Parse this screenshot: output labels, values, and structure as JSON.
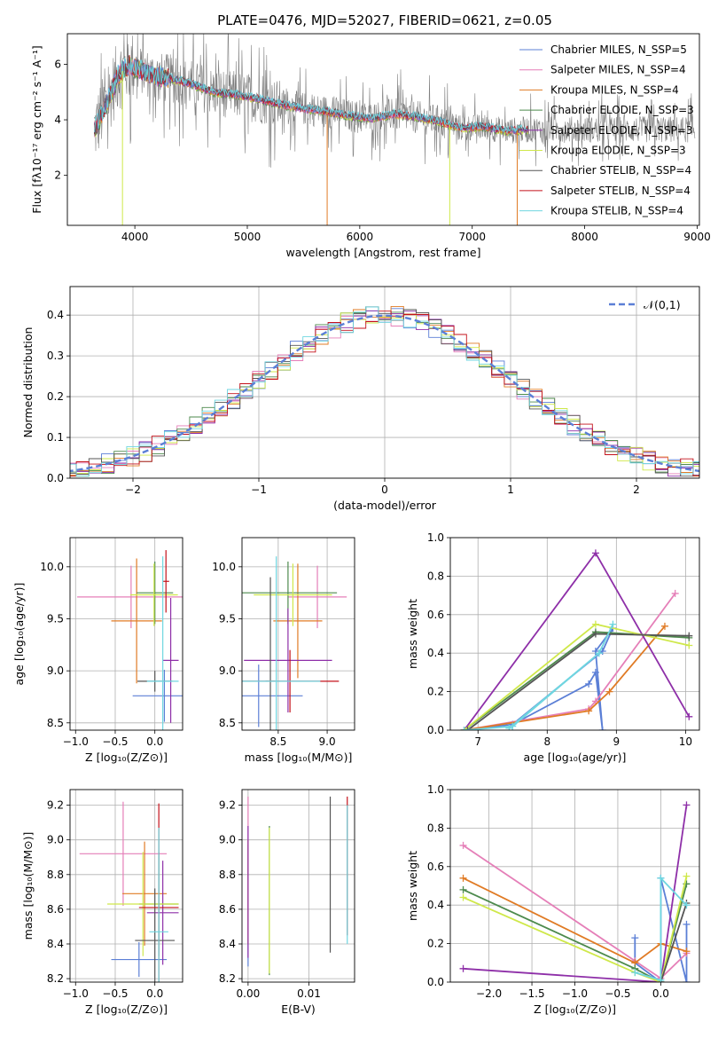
{
  "colors": {
    "Chabrier MILES": "#5b7fd6",
    "Salpeter MILES": "#e57fb8",
    "Kroupa MILES": "#e07b25",
    "Chabrier ELODIE": "#4d8a4d",
    "Salpeter ELODIE": "#8e2fa8",
    "Kroupa ELODIE": "#cfe84a",
    "Chabrier STELIB": "#555555",
    "Salpeter STELIB": "#c4121b",
    "Kroupa STELIB": "#6fd6e0",
    "data": "#808080"
  },
  "chart_data": [
    {
      "type": "line",
      "title": "PLATE=0476, MJD=52027, FIBERID=0621, z=0.05",
      "xlabel": "wavelength [Angstrom, rest frame]",
      "ylabel": "Flux [fλ10⁻¹⁷ erg cm⁻² s⁻¹ A⁻¹]",
      "xlim": [
        3400,
        9020
      ],
      "ylim": [
        0.2,
        7.1
      ],
      "xticks": [
        "4000",
        "5000",
        "6000",
        "7000",
        "8000",
        "9000"
      ],
      "yticks": [
        "2",
        "4",
        "6"
      ],
      "legend": [
        "Chabrier MILES, N_SSP=5",
        "Salpeter MILES, N_SSP=4",
        "Kroupa MILES, N_SSP=4",
        "Chabrier ELODIE, N_SSP=3",
        "Salpeter ELODIE, N_SSP=3",
        "Kroupa ELODIE, N_SSP=3",
        "Chabrier STELIB, N_SSP=4",
        "Salpeter STELIB, N_SSP=4",
        "Kroupa STELIB, N_SSP=4"
      ],
      "legend_placement": "top-right",
      "model_continuum": {
        "x": [
          3650,
          3750,
          3850,
          3950,
          4050,
          4150,
          4300,
          4500,
          4700,
          4900,
          5100,
          5300,
          5500,
          5700,
          5900,
          6100,
          6300,
          6500,
          6700,
          6900,
          7100,
          7300,
          7500
        ],
        "y": [
          3.7,
          4.6,
          5.6,
          6.0,
          5.8,
          5.6,
          5.5,
          5.3,
          5.0,
          4.9,
          4.75,
          4.55,
          4.4,
          4.3,
          4.15,
          4.05,
          4.2,
          4.1,
          3.95,
          3.7,
          3.75,
          3.6,
          3.65
        ]
      }
    },
    {
      "type": "line",
      "xlabel": "(data-model)/error",
      "ylabel": "Normed distribution",
      "xlim": [
        -2.5,
        2.5
      ],
      "ylim": [
        0,
        0.47
      ],
      "xticks": [
        "−2",
        "−1",
        "0",
        "1",
        "2"
      ],
      "yticks": [
        "0.0",
        "0.1",
        "0.2",
        "0.3",
        "0.4"
      ],
      "legend": [
        "𝒩(0,1)"
      ],
      "legend_placement": "top-right",
      "gaussian": {
        "mu": 0,
        "sigma": 1
      }
    },
    {
      "type": "scatter",
      "xlabel": "Z [log₁₀(Z/Z⊙)]",
      "ylabel": "age  [log₁₀(age/yr)]",
      "xlim": [
        -1.07,
        0.35
      ],
      "ylim": [
        8.43,
        10.28
      ],
      "xticks": [
        "−1.0",
        "−0.5",
        "0.0"
      ],
      "yticks": [
        "8.5",
        "9.0",
        "9.5",
        "10.0"
      ],
      "points": [
        {
          "model": "Chabrier MILES",
          "x": 0.12,
          "y": 8.76,
          "xerr": 0.4,
          "yerr": 0.25
        },
        {
          "model": "Salpeter MILES",
          "x": -0.3,
          "y": 9.71,
          "xerr": 0.68,
          "yerr": 0.3
        },
        {
          "model": "Kroupa MILES",
          "x": -0.23,
          "y": 9.48,
          "xerr": 0.32,
          "yerr": 0.6
        },
        {
          "model": "Chabrier ELODIE",
          "x": 0.0,
          "y": 9.75,
          "xerr": 0.23,
          "yerr": 0.3
        },
        {
          "model": "Salpeter ELODIE",
          "x": 0.2,
          "y": 9.1,
          "xerr": 0.1,
          "yerr": 0.6
        },
        {
          "model": "Kroupa ELODIE",
          "x": -0.01,
          "y": 9.73,
          "xerr": 0.3,
          "yerr": 0.3
        },
        {
          "model": "Chabrier STELIB",
          "x": 0.0,
          "y": 8.9,
          "xerr": 0.22,
          "yerr": 0.1
        },
        {
          "model": "Salpeter STELIB",
          "x": 0.14,
          "y": 9.86,
          "xerr": 0.04,
          "yerr": 0.3
        },
        {
          "model": "Kroupa STELIB",
          "x": 0.1,
          "y": 8.9,
          "xerr": 0.2,
          "yerr": 1.2
        }
      ]
    },
    {
      "type": "scatter",
      "xlabel": "mass [log₁₀(M/M⊙)]",
      "ylabel": "",
      "xlim": [
        8.13,
        9.28
      ],
      "ylim": [
        8.43,
        10.28
      ],
      "xticks": [
        "8.5",
        "9.0"
      ],
      "yticks": [
        "8.5",
        "9.0",
        "9.5",
        "10.0"
      ],
      "points": [
        {
          "model": "Chabrier MILES",
          "x": 8.3,
          "y": 8.76,
          "xerr": 0.45,
          "yerr": 0.3
        },
        {
          "model": "Salpeter MILES",
          "x": 8.9,
          "y": 9.71,
          "xerr": 0.3,
          "yerr": 0.3
        },
        {
          "model": "Kroupa MILES",
          "x": 8.7,
          "y": 9.48,
          "xerr": 0.25,
          "yerr": 0.55
        },
        {
          "model": "Chabrier ELODIE",
          "x": 8.6,
          "y": 9.75,
          "xerr": 0.5,
          "yerr": 0.3
        },
        {
          "model": "Salpeter ELODIE",
          "x": 8.6,
          "y": 9.1,
          "xerr": 0.45,
          "yerr": 0.5
        },
        {
          "model": "Kroupa ELODIE",
          "x": 8.65,
          "y": 9.73,
          "xerr": 0.4,
          "yerr": 0.3
        },
        {
          "model": "Chabrier STELIB",
          "x": 8.42,
          "y": 8.9,
          "xerr": 0.05,
          "yerr": 1.0
        },
        {
          "model": "Salpeter STELIB",
          "x": 8.62,
          "y": 8.9,
          "xerr": 0.5,
          "yerr": 0.3
        },
        {
          "model": "Kroupa STELIB",
          "x": 8.48,
          "y": 8.9,
          "xerr": 0.45,
          "yerr": 1.2
        }
      ]
    },
    {
      "type": "line",
      "xlabel": "age  [log₁₀(age/yr)]",
      "ylabel": "mass weight",
      "xlim": [
        6.6,
        10.2
      ],
      "ylim": [
        0,
        1.0
      ],
      "xticks": [
        "7",
        "8",
        "9",
        "10"
      ],
      "yticks": [
        "0.0",
        "0.2",
        "0.4",
        "0.6",
        "0.8",
        "1.0"
      ],
      "series": [
        {
          "model": "Chabrier MILES",
          "x": [
            6.8,
            7.5,
            8.6,
            8.7,
            8.8,
            8.7,
            8.95,
            8.8,
            7.5
          ],
          "y": [
            0.0,
            0.03,
            0.24,
            0.3,
            0.0,
            0.41,
            0.53,
            0.41,
            0.03
          ]
        },
        {
          "model": "Salpeter MILES",
          "x": [
            6.8,
            8.6,
            8.7,
            9.85
          ],
          "y": [
            0.0,
            0.11,
            0.15,
            0.71
          ]
        },
        {
          "model": "Kroupa MILES",
          "x": [
            6.8,
            8.6,
            8.9,
            9.7
          ],
          "y": [
            0.0,
            0.1,
            0.2,
            0.54
          ]
        },
        {
          "model": "Chabrier ELODIE",
          "x": [
            6.8,
            8.7,
            10.05
          ],
          "y": [
            0.0,
            0.51,
            0.48
          ]
        },
        {
          "model": "Salpeter ELODIE",
          "x": [
            6.8,
            8.7,
            10.05
          ],
          "y": [
            0.0,
            0.92,
            0.07
          ]
        },
        {
          "model": "Kroupa ELODIE",
          "x": [
            6.8,
            8.7,
            10.05
          ],
          "y": [
            0.0,
            0.55,
            0.44
          ]
        },
        {
          "model": "Chabrier STELIB",
          "x": [
            6.85,
            8.7,
            10.05
          ],
          "y": [
            0.0,
            0.5,
            0.49
          ]
        },
        {
          "model": "Kroupa STELIB",
          "x": [
            6.8,
            7.5,
            8.75,
            8.95,
            8.75,
            7.45
          ],
          "y": [
            0.0,
            0.02,
            0.4,
            0.55,
            0.4,
            0.01
          ]
        }
      ]
    },
    {
      "type": "scatter",
      "xlabel": "Z [log₁₀(Z/Z⊙)]",
      "ylabel": "mass [log₁₀(M/M⊙)]",
      "xlim": [
        -1.07,
        0.35
      ],
      "ylim": [
        8.18,
        9.29
      ],
      "xticks": [
        "−1.0",
        "−0.5",
        "0.0"
      ],
      "yticks": [
        "8.2",
        "8.4",
        "8.6",
        "8.8",
        "9.0",
        "9.2"
      ],
      "points": [
        {
          "model": "Chabrier MILES",
          "x": -0.2,
          "y": 8.31,
          "xerr": 0.35,
          "yerr": 0.1
        },
        {
          "model": "Salpeter MILES",
          "x": -0.4,
          "y": 8.92,
          "xerr": 0.55,
          "yerr": 0.3
        },
        {
          "model": "Kroupa MILES",
          "x": -0.13,
          "y": 8.69,
          "xerr": 0.28,
          "yerr": 0.3
        },
        {
          "model": "Chabrier ELODIE",
          "x": 0.05,
          "y": 8.63,
          "xerr": 0.25,
          "yerr": 0.3
        },
        {
          "model": "Salpeter ELODIE",
          "x": 0.1,
          "y": 8.58,
          "xerr": 0.2,
          "yerr": 0.3
        },
        {
          "model": "Kroupa ELODIE",
          "x": -0.15,
          "y": 8.63,
          "xerr": 0.45,
          "yerr": 0.3
        },
        {
          "model": "Chabrier STELIB",
          "x": 0.0,
          "y": 8.42,
          "xerr": 0.25,
          "yerr": 0.3
        },
        {
          "model": "Salpeter STELIB",
          "x": 0.05,
          "y": 8.61,
          "xerr": 0.25,
          "yerr": 0.6
        },
        {
          "model": "Kroupa STELIB",
          "x": 0.05,
          "y": 8.47,
          "xerr": 0.12,
          "yerr": 0.6
        }
      ]
    },
    {
      "type": "scatter",
      "xlabel": "E(B-V)",
      "ylabel": "",
      "xlim": [
        -0.001,
        0.0175
      ],
      "ylim": [
        8.18,
        9.29
      ],
      "xticks": [
        "0.00",
        "0.01"
      ],
      "yticks": [
        "8.2",
        "8.4",
        "8.6",
        "8.8",
        "9.0",
        "9.2"
      ],
      "points": [
        {
          "model": "Chabrier MILES",
          "x": 0.0,
          "y": 8.62,
          "yerr": 0.35
        },
        {
          "model": "Salpeter MILES",
          "x": 0.0,
          "y": 8.85,
          "yerr": 0.4
        },
        {
          "model": "Kroupa MILES",
          "x": 0.0,
          "y": 8.7,
          "yerr": 0.3
        },
        {
          "model": "Chabrier ELODIE",
          "x": 0.0035,
          "y": 8.65,
          "yerr": 0.43
        },
        {
          "model": "Salpeter ELODIE",
          "x": 0.0,
          "y": 8.7,
          "yerr": 0.38
        },
        {
          "model": "Kroupa ELODIE",
          "x": 0.0035,
          "y": 8.65,
          "yerr": 0.42
        },
        {
          "model": "Chabrier STELIB",
          "x": 0.0135,
          "y": 8.8,
          "yerr": 0.45
        },
        {
          "model": "Salpeter STELIB",
          "x": 0.0163,
          "y": 8.85,
          "yerr": 0.4
        },
        {
          "model": "Kroupa STELIB",
          "x": 0.0163,
          "y": 8.8,
          "yerr": 0.4
        }
      ]
    },
    {
      "type": "line",
      "xlabel": "Z [log₁₀(Z/Z⊙)]",
      "ylabel": "mass weight",
      "xlim": [
        -2.45,
        0.45
      ],
      "ylim": [
        0,
        1.0
      ],
      "xticks": [
        "−2.0",
        "−1.5",
        "−1.0",
        "−0.5",
        "0.0"
      ],
      "yticks": [
        "0.0",
        "0.2",
        "0.4",
        "0.6",
        "0.8",
        "1.0"
      ],
      "series": [
        {
          "model": "Chabrier MILES",
          "x": [
            -0.3,
            -0.3,
            0.0,
            0.0,
            0.3,
            0.3
          ],
          "y": [
            0.23,
            0.1,
            0.0,
            0.54,
            0.0,
            0.3
          ]
        },
        {
          "model": "Salpeter MILES",
          "x": [
            -2.3,
            -0.3,
            0.0,
            0.3
          ],
          "y": [
            0.71,
            0.11,
            0.02,
            0.15
          ]
        },
        {
          "model": "Kroupa MILES",
          "x": [
            -2.3,
            -0.3,
            0.0,
            0.3
          ],
          "y": [
            0.54,
            0.1,
            0.2,
            0.16
          ]
        },
        {
          "model": "Chabrier ELODIE",
          "x": [
            -2.3,
            -0.3,
            0.0,
            0.3
          ],
          "y": [
            0.48,
            0.07,
            0.0,
            0.51
          ]
        },
        {
          "model": "Salpeter ELODIE",
          "x": [
            -2.3,
            0.0,
            0.3
          ],
          "y": [
            0.07,
            0.0,
            0.92
          ]
        },
        {
          "model": "Kroupa ELODIE",
          "x": [
            -2.3,
            -0.3,
            0.0,
            0.3
          ],
          "y": [
            0.44,
            0.05,
            0.0,
            0.55
          ]
        },
        {
          "model": "Chabrier STELIB",
          "x": [
            0.0,
            0.3
          ],
          "y": [
            0.0,
            0.41
          ]
        },
        {
          "model": "Kroupa STELIB",
          "x": [
            -0.3,
            0.0,
            0.0,
            0.3
          ],
          "y": [
            0.05,
            0.01,
            0.54,
            0.4
          ]
        }
      ]
    }
  ]
}
